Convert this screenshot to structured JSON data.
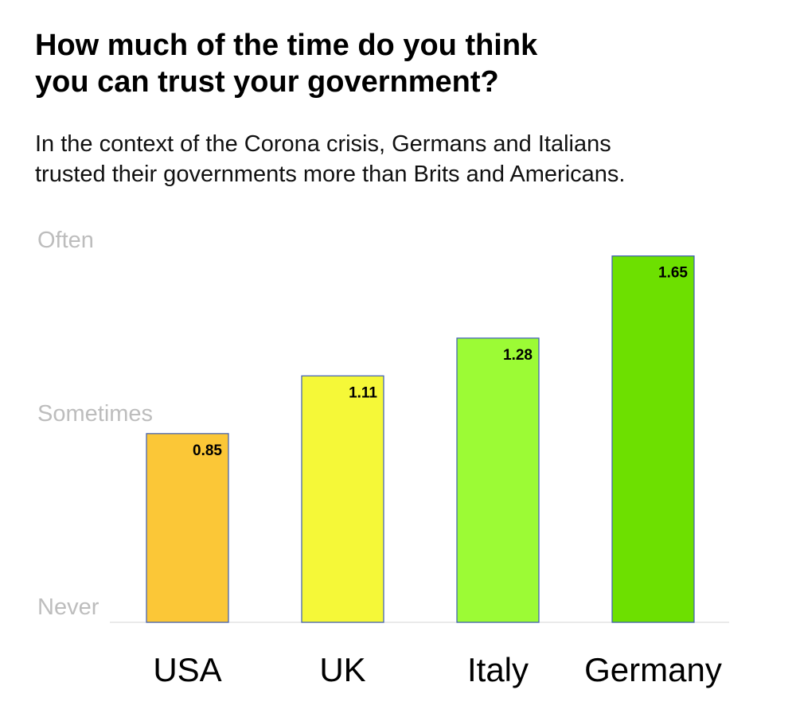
{
  "chart_data": {
    "type": "bar",
    "title_lines": [
      "How much of the time do you think",
      "you can trust your government?"
    ],
    "subtitle_lines": [
      "In the context of the Corona crisis, Germans and Italians",
      "trusted their governments more than Brits and Americans."
    ],
    "categories": [
      "USA",
      "UK",
      "Italy",
      "Germany"
    ],
    "values": [
      0.85,
      1.11,
      1.28,
      1.65
    ],
    "data_labels": [
      "0.85",
      "1.11",
      "1.28",
      "1.65"
    ],
    "colors": [
      "#FBC737",
      "#F5F838",
      "#9CFB35",
      "#6DE000"
    ],
    "bar_border_color": "#3B5BB5",
    "y_tick_labels": [
      "Never",
      "Sometimes",
      "Often"
    ],
    "ylim": [
      0,
      1.75
    ],
    "grid": false,
    "legend": "none"
  }
}
